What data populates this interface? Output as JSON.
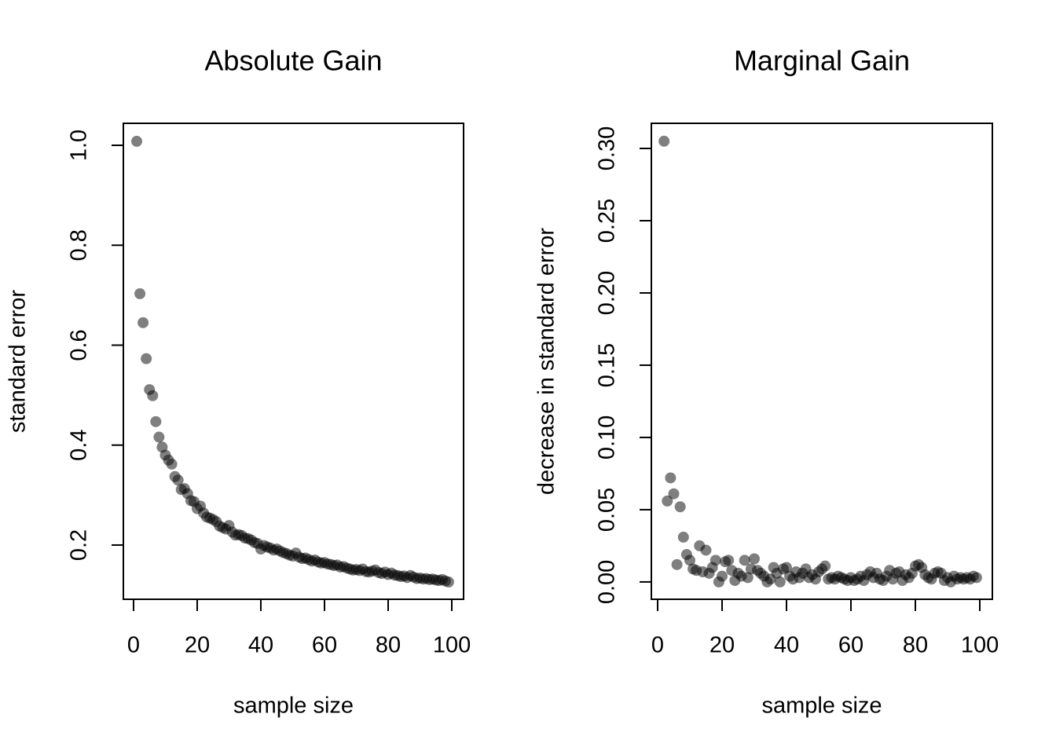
{
  "chart_data": [
    {
      "type": "scatter",
      "title": "Absolute Gain",
      "x_label": "sample size",
      "y_label": "standard error",
      "color": "#000000",
      "alpha": 0.5,
      "xlim": [
        -3.2,
        103.7
      ],
      "ylim": [
        0.0915,
        1.044
      ],
      "xticks": [
        0,
        20,
        40,
        60,
        80,
        100
      ],
      "yticks": [
        0.2,
        0.4,
        0.6,
        0.8,
        {
          "value": 1,
          "label": "1.0"
        }
      ],
      "x": [
        1,
        2,
        3,
        4,
        5,
        6,
        7,
        8,
        9,
        10,
        11,
        12,
        13,
        14,
        15,
        16,
        17,
        18,
        19,
        20,
        21,
        22,
        23,
        24,
        25,
        26,
        27,
        28,
        29,
        30,
        31,
        32,
        33,
        34,
        35,
        36,
        37,
        38,
        39,
        40,
        41,
        42,
        43,
        44,
        45,
        46,
        47,
        48,
        49,
        50,
        51,
        52,
        53,
        54,
        55,
        56,
        57,
        58,
        59,
        60,
        61,
        62,
        63,
        64,
        65,
        66,
        67,
        68,
        69,
        70,
        71,
        72,
        73,
        74,
        75,
        76,
        77,
        78,
        79,
        80,
        81,
        82,
        83,
        84,
        85,
        86,
        87,
        88,
        89,
        90,
        91,
        92,
        93,
        94,
        95,
        96,
        97,
        98,
        99
      ],
      "values": [
        1.008,
        0.703,
        0.645,
        0.573,
        0.511,
        0.499,
        0.447,
        0.416,
        0.396,
        0.38,
        0.37,
        0.362,
        0.337,
        0.33,
        0.311,
        0.313,
        0.303,
        0.289,
        0.287,
        0.273,
        0.278,
        0.264,
        0.256,
        0.254,
        0.251,
        0.247,
        0.238,
        0.235,
        0.232,
        0.239,
        0.226,
        0.22,
        0.221,
        0.219,
        0.214,
        0.213,
        0.21,
        0.205,
        0.203,
        0.192,
        0.199,
        0.196,
        0.194,
        0.19,
        0.192,
        0.188,
        0.185,
        0.183,
        0.18,
        0.178,
        0.184,
        0.176,
        0.173,
        0.174,
        0.171,
        0.168,
        0.17,
        0.166,
        0.164,
        0.165,
        0.162,
        0.161,
        0.159,
        0.16,
        0.156,
        0.157,
        0.154,
        0.152,
        0.15,
        0.151,
        0.149,
        0.152,
        0.147,
        0.146,
        0.148,
        0.15,
        0.145,
        0.143,
        0.146,
        0.141,
        0.144,
        0.14,
        0.139,
        0.137,
        0.138,
        0.135,
        0.139,
        0.136,
        0.133,
        0.134,
        0.132,
        0.133,
        0.131,
        0.132,
        0.13,
        0.129,
        0.131,
        0.128,
        0.126
      ]
    },
    {
      "type": "scatter",
      "title": "Marginal Gain",
      "x_label": "sample size",
      "y_label": "decrease in standard error",
      "color": "#000000",
      "alpha": 0.5,
      "xlim": [
        -1.95,
        103.9
      ],
      "ylim": [
        -0.012,
        0.3174
      ],
      "xticks": [
        0,
        20,
        40,
        60,
        80,
        100
      ],
      "yticks": [
        {
          "value": 0,
          "label": "0.00"
        },
        {
          "value": 0.05,
          "label": "0.05"
        },
        {
          "value": 0.1,
          "label": "0.10"
        },
        {
          "value": 0.15,
          "label": "0.15"
        },
        {
          "value": 0.2,
          "label": "0.20"
        },
        {
          "value": 0.25,
          "label": "0.25"
        },
        {
          "value": 0.3,
          "label": "0.30"
        }
      ],
      "x": [
        2,
        3,
        4,
        5,
        6,
        7,
        8,
        9,
        10,
        11,
        12,
        13,
        14,
        15,
        16,
        17,
        18,
        19,
        20,
        21,
        22,
        23,
        24,
        25,
        26,
        27,
        28,
        29,
        30,
        31,
        32,
        33,
        34,
        35,
        36,
        37,
        38,
        39,
        40,
        41,
        42,
        43,
        44,
        45,
        46,
        47,
        48,
        49,
        50,
        51,
        52,
        53,
        54,
        55,
        56,
        57,
        58,
        59,
        60,
        61,
        62,
        63,
        64,
        65,
        66,
        67,
        68,
        69,
        70,
        71,
        72,
        73,
        74,
        75,
        76,
        77,
        78,
        79,
        80,
        81,
        82,
        83,
        84,
        85,
        86,
        87,
        88,
        89,
        90,
        91,
        92,
        93,
        94,
        95,
        96,
        97,
        98,
        99
      ],
      "values": [
        0.305,
        0.056,
        0.072,
        0.061,
        0.012,
        0.052,
        0.031,
        0.019,
        0.015,
        0.009,
        0.008,
        0.025,
        0.007,
        0.022,
        0.006,
        0.01,
        0.015,
        0.0,
        0.004,
        0.014,
        0.015,
        0.008,
        0.001,
        0.006,
        0.004,
        0.015,
        0.003,
        0.009,
        0.016,
        0.008,
        0.006,
        0.004,
        0.0,
        0.002,
        0.01,
        0.006,
        0.0,
        0.009,
        0.01,
        0.004,
        0.002,
        0.007,
        0.003,
        0.006,
        0.009,
        0.003,
        0.005,
        0.002,
        0.007,
        0.009,
        0.011,
        0.002,
        0.003,
        0.002,
        0.004,
        0.003,
        0.002,
        0.001,
        0.003,
        0.001,
        0.002,
        0.004,
        0.001,
        0.005,
        0.007,
        0.003,
        0.006,
        0.002,
        0.001,
        0.004,
        0.008,
        0.002,
        0.006,
        0.007,
        0.001,
        0.005,
        0.003,
        0.006,
        0.011,
        0.012,
        0.01,
        0.005,
        0.003,
        0.002,
        0.006,
        0.007,
        0.006,
        0.001,
        0.003,
        0.0,
        0.004,
        0.002,
        0.003,
        0.002,
        0.003,
        0.002,
        0.004,
        0.003
      ]
    }
  ]
}
